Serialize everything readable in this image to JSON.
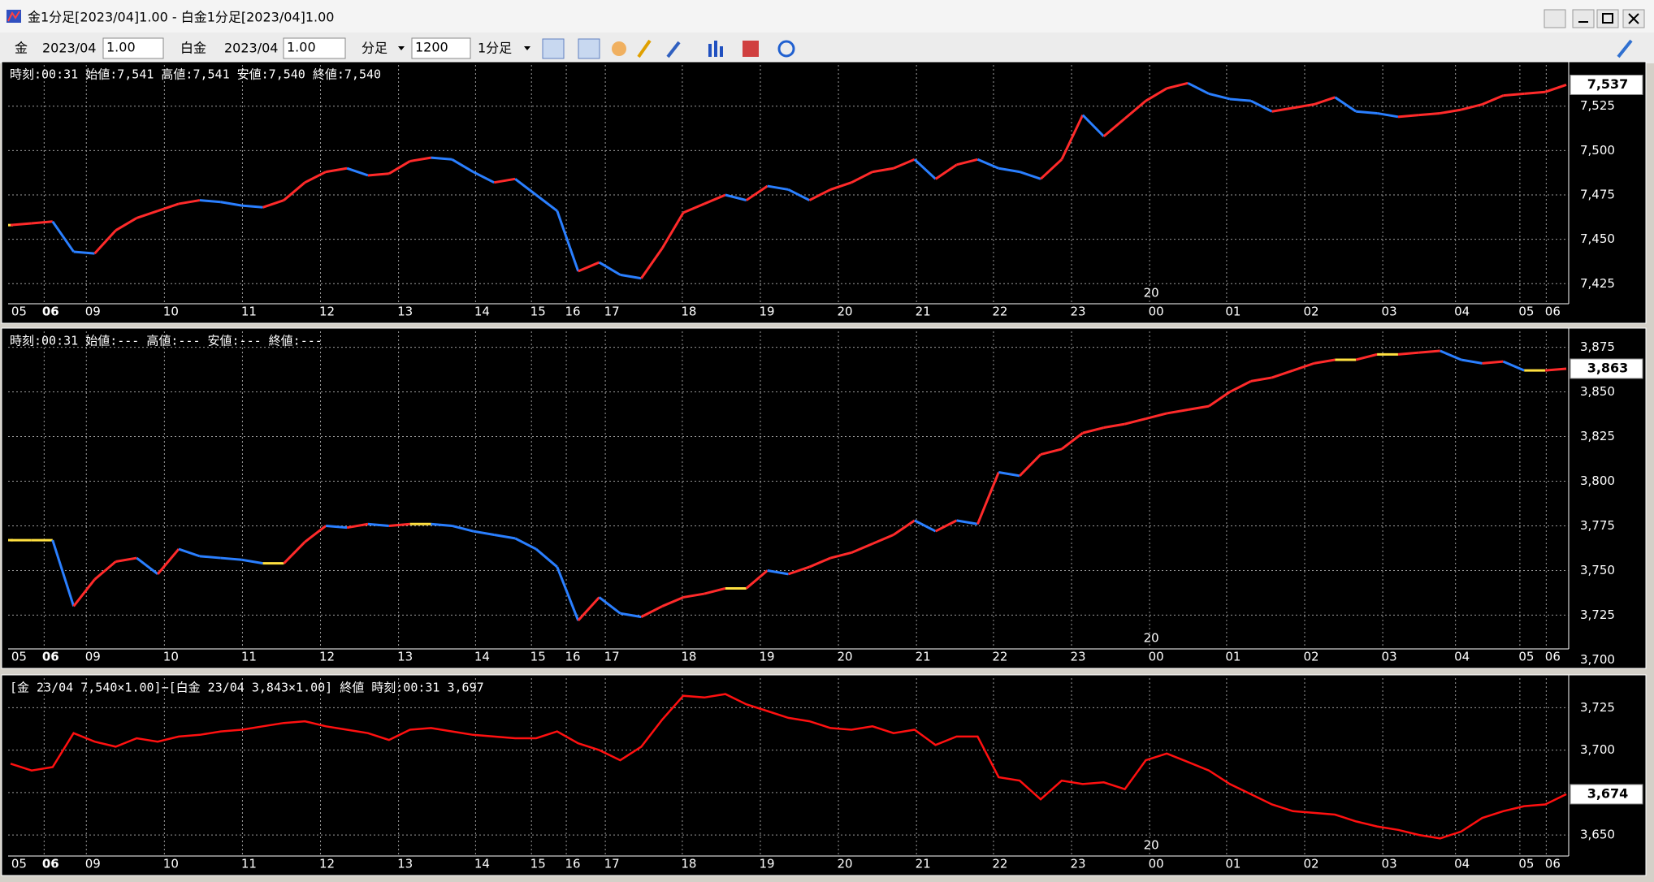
{
  "window": {
    "title": "金1分足[2023/04]1.00 - 白金1分足[2023/04]1.00"
  },
  "toolbar": {
    "symbol1": "金",
    "month1": "2023/04",
    "mult1": "1.00",
    "symbol2": "白金",
    "month2": "2023/04",
    "mult2": "1.00",
    "period_unit": "分足",
    "bars": "1200",
    "period": "1分足"
  },
  "time_axis": [
    "05",
    "06",
    "09",
    "10",
    "11",
    "12",
    "13",
    "14",
    "15",
    "16",
    "17",
    "18",
    "19",
    "20",
    "21",
    "22",
    "23",
    "00",
    "01",
    "02",
    "03",
    "04",
    "05",
    "06"
  ],
  "day_marker": "20",
  "panels": [
    {
      "type": "segments",
      "header": "時刻:00:31 始値:7,541 高値:7,541 安値:7,540 終値:7,540",
      "current_label": "7,537",
      "ylim": [
        7413.7,
        7548.2
      ],
      "yticks": [
        {
          "value": 7425,
          "label": "7,425"
        },
        {
          "value": 7450,
          "label": "7,450"
        },
        {
          "value": 7475,
          "label": "7,475"
        },
        {
          "value": 7500,
          "label": "7,500"
        },
        {
          "value": 7525,
          "label": "7,525"
        }
      ],
      "values": [
        7458,
        7459,
        7460,
        7443,
        7442,
        7455,
        7462,
        7466,
        7470,
        7472,
        7471,
        7469,
        7468,
        7472,
        7482,
        7488,
        7490,
        7486,
        7487,
        7494,
        7496,
        7495,
        7488,
        7482,
        7484,
        7475,
        7466,
        7432,
        7437,
        7430,
        7428,
        7445,
        7465,
        7470,
        7475,
        7472,
        7480,
        7478,
        7472,
        7478,
        7482,
        7488,
        7490,
        7495,
        7484,
        7492,
        7495,
        7490,
        7488,
        7484,
        7495,
        7520,
        7508,
        7518,
        7528,
        7535,
        7538,
        7532,
        7529,
        7528,
        7522,
        7524,
        7526,
        7530,
        7522,
        7521,
        7519,
        7520,
        7521,
        7523,
        7526,
        7531,
        7532,
        7533,
        7537
      ]
    },
    {
      "type": "segments",
      "header": "時刻:00:31 始値:--- 高値:--- 安値:--- 終値:---",
      "current_label": "3,863",
      "ylim": [
        3706.1,
        3883.9
      ],
      "yticks": [
        {
          "value": 3700,
          "label": "3,700"
        },
        {
          "value": 3725,
          "label": "3,725"
        },
        {
          "value": 3750,
          "label": "3,750"
        },
        {
          "value": 3775,
          "label": "3,775"
        },
        {
          "value": 3800,
          "label": "3,800"
        },
        {
          "value": 3825,
          "label": "3,825"
        },
        {
          "value": 3850,
          "label": "3,850"
        },
        {
          "value": 3875,
          "label": "3,875"
        }
      ],
      "values": [
        3767,
        3767,
        3767,
        3730,
        3745,
        3755,
        3757,
        3748,
        3762,
        3758,
        3757,
        3756,
        3754,
        3754,
        3766,
        3775,
        3774,
        3776,
        3775,
        3776,
        3776,
        3775,
        3772,
        3770,
        3768,
        3762,
        3752,
        3722,
        3735,
        3726,
        3724,
        3730,
        3735,
        3737,
        3740,
        3740,
        3750,
        3748,
        3752,
        3757,
        3760,
        3765,
        3770,
        3778,
        3772,
        3778,
        3776,
        3805,
        3803,
        3815,
        3818,
        3827,
        3830,
        3832,
        3835,
        3838,
        3840,
        3842,
        3850,
        3856,
        3858,
        3862,
        3866,
        3868,
        3868,
        3871,
        3871,
        3872,
        3873,
        3868,
        3866,
        3867,
        3862,
        3862,
        3863
      ]
    },
    {
      "type": "line",
      "header": "[金 23/04 7,540×1.00]−[白金 23/04 3,843×1.00] 終値 時刻:00:31 3,697",
      "current_label": "3,674",
      "color": "#ff1010",
      "ylim": [
        3637.6,
        3742.4
      ],
      "yticks": [
        {
          "value": 3650,
          "label": "3,650"
        },
        {
          "value": 3675,
          "label": "3,675"
        },
        {
          "value": 3700,
          "label": "3,700"
        },
        {
          "value": 3725,
          "label": "3,725"
        }
      ],
      "values": [
        3692,
        3688,
        3690,
        3710,
        3705,
        3702,
        3707,
        3705,
        3708,
        3709,
        3711,
        3712,
        3714,
        3716,
        3717,
        3714,
        3712,
        3710,
        3706,
        3712,
        3713,
        3711,
        3709,
        3708,
        3707,
        3707,
        3711,
        3704,
        3700,
        3694,
        3702,
        3718,
        3732,
        3731,
        3733,
        3727,
        3723,
        3719,
        3717,
        3713,
        3712,
        3714,
        3710,
        3712,
        3703,
        3708,
        3708,
        3684,
        3682,
        3671,
        3682,
        3680,
        3681,
        3677,
        3694,
        3698,
        3693,
        3688,
        3680,
        3674,
        3668,
        3664,
        3663,
        3662,
        3658,
        3655,
        3653,
        3650,
        3648,
        3652,
        3660,
        3664,
        3667,
        3668,
        3674
      ]
    }
  ]
}
